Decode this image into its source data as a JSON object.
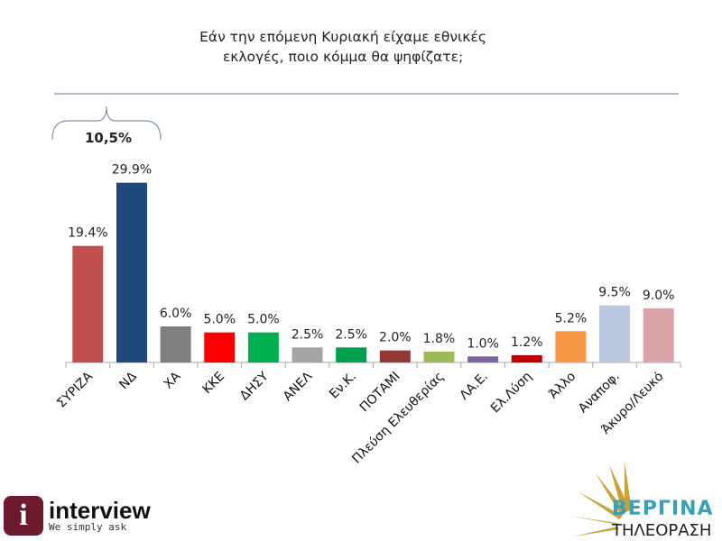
{
  "title_lines": [
    "Εάν την επόμενη Κυριακή είχαμε εθνικές",
    "εκλογές, ποιο κόμμα θα ψηφίζατε;"
  ],
  "chart_data": {
    "type": "bar",
    "categories": [
      "ΣΥΡΙΖΑ",
      "ΝΔ",
      "ΧΑ",
      "ΚΚΕ",
      "ΔΗΣΥ",
      "ΑΝΕΛ",
      "Εν.Κ.",
      "ΠΟΤΑΜΙ",
      "Πλεύση Ελευθερίας",
      "ΛΑ.Ε.",
      "Ελ.Λύση",
      "Άλλο",
      "Αναποφ.",
      "Άκυρο/Λευκό"
    ],
    "values": [
      19.4,
      29.9,
      6.0,
      5.0,
      5.0,
      2.5,
      2.5,
      2.0,
      1.8,
      1.0,
      1.2,
      5.2,
      9.5,
      9.0
    ],
    "data_labels": [
      "19.4%",
      "29.9%",
      "6.0%",
      "5.0%",
      "5.0%",
      "2.5%",
      "2.5%",
      "2.0%",
      "1.8%",
      "1.0%",
      "1.2%",
      "5.2%",
      "9.5%",
      "9.0%"
    ],
    "colors": [
      "#c0504d",
      "#1f497d",
      "#7f7f7f",
      "#ff0000",
      "#00b050",
      "#a5a5a5",
      "#00a050",
      "#953735",
      "#9bbb59",
      "#8064a2",
      "#c00000",
      "#f79646",
      "#b9c8e0",
      "#d9a3a8"
    ],
    "ylim": [
      0,
      30
    ],
    "grid": false,
    "annotation": "10,5%"
  },
  "logos": {
    "left_name": "interview",
    "left_tagline": "We simply ask",
    "right_name": "ΒΕΡΓΙΝΑ",
    "right_sub": "ΤΗΛΕΟΡΑΣΗ"
  }
}
